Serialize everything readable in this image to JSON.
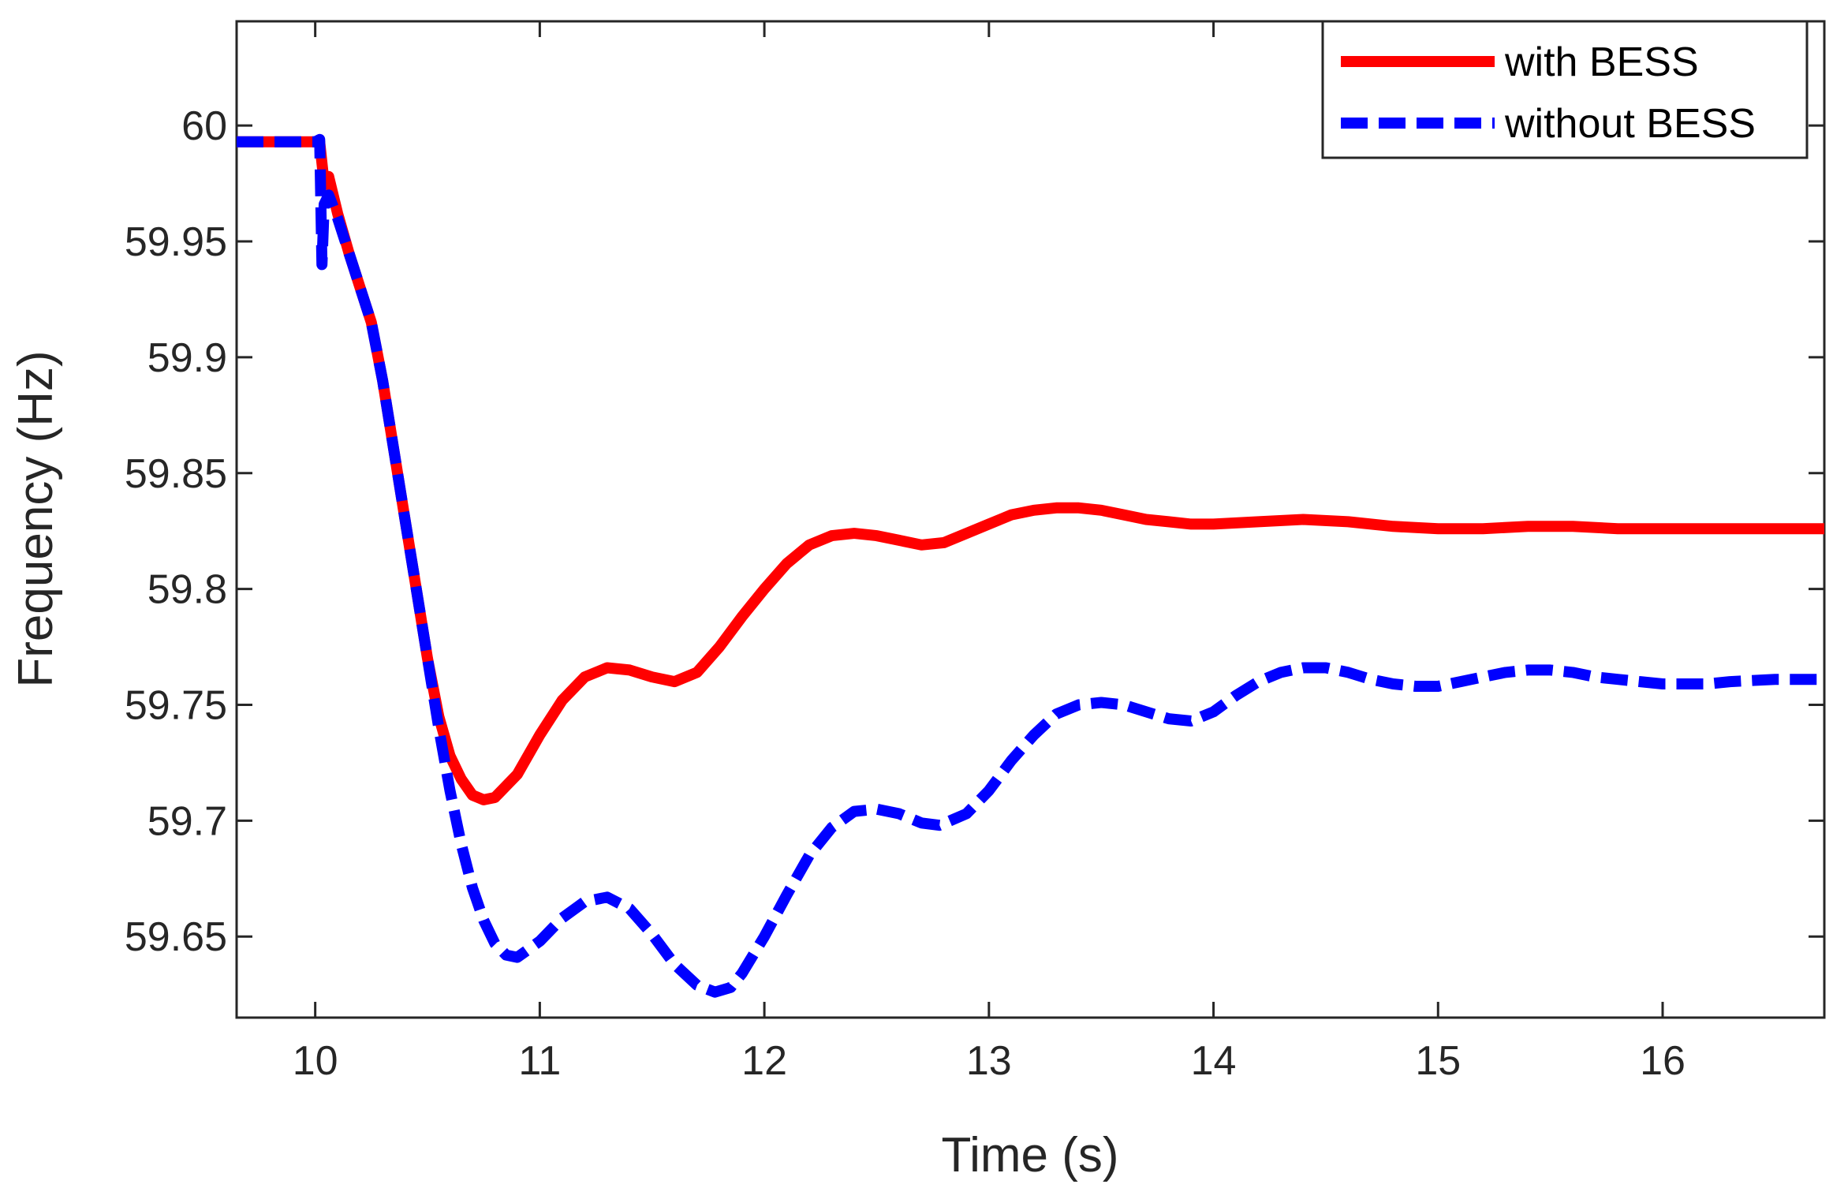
{
  "chart_data": {
    "type": "line",
    "title": "",
    "xlabel": "Time (s)",
    "ylabel": "Frequency (Hz)",
    "xlim": [
      9.65,
      16.72
    ],
    "ylim": [
      59.615,
      60.045
    ],
    "xticks": [
      10,
      11,
      12,
      13,
      14,
      15,
      16
    ],
    "xtick_labels": [
      "10",
      "11",
      "12",
      "13",
      "14",
      "15",
      "16"
    ],
    "yticks": [
      59.65,
      59.7,
      59.75,
      59.8,
      59.85,
      59.9,
      59.95,
      60
    ],
    "ytick_labels": [
      "59.65",
      "59.7",
      "59.75",
      "59.8",
      "59.85",
      "59.9",
      "59.95",
      "60"
    ],
    "grid": false,
    "legend_position": "top-right",
    "series": [
      {
        "name": "with BESS",
        "color": "#ff0000",
        "style": "solid",
        "points": [
          [
            9.65,
            59.993
          ],
          [
            10.0,
            59.993
          ],
          [
            10.02,
            59.993
          ],
          [
            10.04,
            59.975
          ],
          [
            10.06,
            59.978
          ],
          [
            10.1,
            59.962
          ],
          [
            10.15,
            59.945
          ],
          [
            10.2,
            59.93
          ],
          [
            10.25,
            59.915
          ],
          [
            10.3,
            59.89
          ],
          [
            10.35,
            59.86
          ],
          [
            10.4,
            59.83
          ],
          [
            10.45,
            59.8
          ],
          [
            10.5,
            59.77
          ],
          [
            10.55,
            59.745
          ],
          [
            10.6,
            59.728
          ],
          [
            10.65,
            59.718
          ],
          [
            10.7,
            59.711
          ],
          [
            10.75,
            59.709
          ],
          [
            10.8,
            59.71
          ],
          [
            10.9,
            59.72
          ],
          [
            11.0,
            59.737
          ],
          [
            11.1,
            59.752
          ],
          [
            11.2,
            59.762
          ],
          [
            11.3,
            59.766
          ],
          [
            11.4,
            59.765
          ],
          [
            11.5,
            59.762
          ],
          [
            11.6,
            59.76
          ],
          [
            11.7,
            59.764
          ],
          [
            11.8,
            59.775
          ],
          [
            11.9,
            59.788
          ],
          [
            12.0,
            59.8
          ],
          [
            12.1,
            59.811
          ],
          [
            12.2,
            59.819
          ],
          [
            12.3,
            59.823
          ],
          [
            12.4,
            59.824
          ],
          [
            12.5,
            59.823
          ],
          [
            12.6,
            59.821
          ],
          [
            12.7,
            59.819
          ],
          [
            12.8,
            59.82
          ],
          [
            12.9,
            59.824
          ],
          [
            13.0,
            59.828
          ],
          [
            13.1,
            59.832
          ],
          [
            13.2,
            59.834
          ],
          [
            13.3,
            59.835
          ],
          [
            13.4,
            59.835
          ],
          [
            13.5,
            59.834
          ],
          [
            13.6,
            59.832
          ],
          [
            13.7,
            59.83
          ],
          [
            13.8,
            59.829
          ],
          [
            13.9,
            59.828
          ],
          [
            14.0,
            59.828
          ],
          [
            14.2,
            59.829
          ],
          [
            14.4,
            59.83
          ],
          [
            14.6,
            59.829
          ],
          [
            14.8,
            59.827
          ],
          [
            15.0,
            59.826
          ],
          [
            15.2,
            59.826
          ],
          [
            15.4,
            59.827
          ],
          [
            15.6,
            59.827
          ],
          [
            15.8,
            59.826
          ],
          [
            16.0,
            59.826
          ],
          [
            16.2,
            59.826
          ],
          [
            16.4,
            59.826
          ],
          [
            16.72,
            59.826
          ]
        ]
      },
      {
        "name": "without BESS",
        "color": "#0000ff",
        "style": "dashed",
        "points": [
          [
            9.65,
            59.993
          ],
          [
            10.0,
            59.993
          ],
          [
            10.02,
            59.994
          ],
          [
            10.03,
            59.94
          ],
          [
            10.04,
            59.966
          ],
          [
            10.06,
            59.97
          ],
          [
            10.1,
            59.96
          ],
          [
            10.15,
            59.945
          ],
          [
            10.2,
            59.93
          ],
          [
            10.25,
            59.915
          ],
          [
            10.3,
            59.89
          ],
          [
            10.35,
            59.86
          ],
          [
            10.4,
            59.83
          ],
          [
            10.45,
            59.8
          ],
          [
            10.5,
            59.77
          ],
          [
            10.55,
            59.74
          ],
          [
            10.6,
            59.713
          ],
          [
            10.65,
            59.69
          ],
          [
            10.7,
            59.671
          ],
          [
            10.75,
            59.657
          ],
          [
            10.8,
            59.647
          ],
          [
            10.85,
            59.642
          ],
          [
            10.9,
            59.641
          ],
          [
            11.0,
            59.648
          ],
          [
            11.1,
            59.658
          ],
          [
            11.2,
            59.665
          ],
          [
            11.3,
            59.667
          ],
          [
            11.4,
            59.662
          ],
          [
            11.5,
            59.651
          ],
          [
            11.6,
            59.638
          ],
          [
            11.7,
            59.629
          ],
          [
            11.78,
            59.626
          ],
          [
            11.85,
            59.628
          ],
          [
            11.9,
            59.634
          ],
          [
            12.0,
            59.65
          ],
          [
            12.1,
            59.668
          ],
          [
            12.2,
            59.685
          ],
          [
            12.3,
            59.697
          ],
          [
            12.4,
            59.704
          ],
          [
            12.5,
            59.705
          ],
          [
            12.6,
            59.703
          ],
          [
            12.7,
            59.699
          ],
          [
            12.78,
            59.698
          ],
          [
            12.9,
            59.703
          ],
          [
            13.0,
            59.713
          ],
          [
            13.1,
            59.726
          ],
          [
            13.2,
            59.737
          ],
          [
            13.3,
            59.746
          ],
          [
            13.4,
            59.75
          ],
          [
            13.5,
            59.751
          ],
          [
            13.6,
            59.75
          ],
          [
            13.7,
            59.747
          ],
          [
            13.8,
            59.744
          ],
          [
            13.9,
            59.743
          ],
          [
            14.0,
            59.747
          ],
          [
            14.1,
            59.754
          ],
          [
            14.2,
            59.76
          ],
          [
            14.3,
            59.764
          ],
          [
            14.4,
            59.766
          ],
          [
            14.5,
            59.766
          ],
          [
            14.6,
            59.764
          ],
          [
            14.7,
            59.761
          ],
          [
            14.8,
            59.759
          ],
          [
            14.9,
            59.758
          ],
          [
            15.0,
            59.758
          ],
          [
            15.1,
            59.76
          ],
          [
            15.2,
            59.762
          ],
          [
            15.3,
            59.764
          ],
          [
            15.4,
            59.765
          ],
          [
            15.5,
            59.765
          ],
          [
            15.6,
            59.764
          ],
          [
            15.7,
            59.762
          ],
          [
            15.8,
            59.761
          ],
          [
            15.9,
            59.76
          ],
          [
            16.0,
            59.759
          ],
          [
            16.1,
            59.759
          ],
          [
            16.2,
            59.759
          ],
          [
            16.3,
            59.76
          ],
          [
            16.5,
            59.761
          ],
          [
            16.72,
            59.761
          ]
        ]
      }
    ]
  }
}
